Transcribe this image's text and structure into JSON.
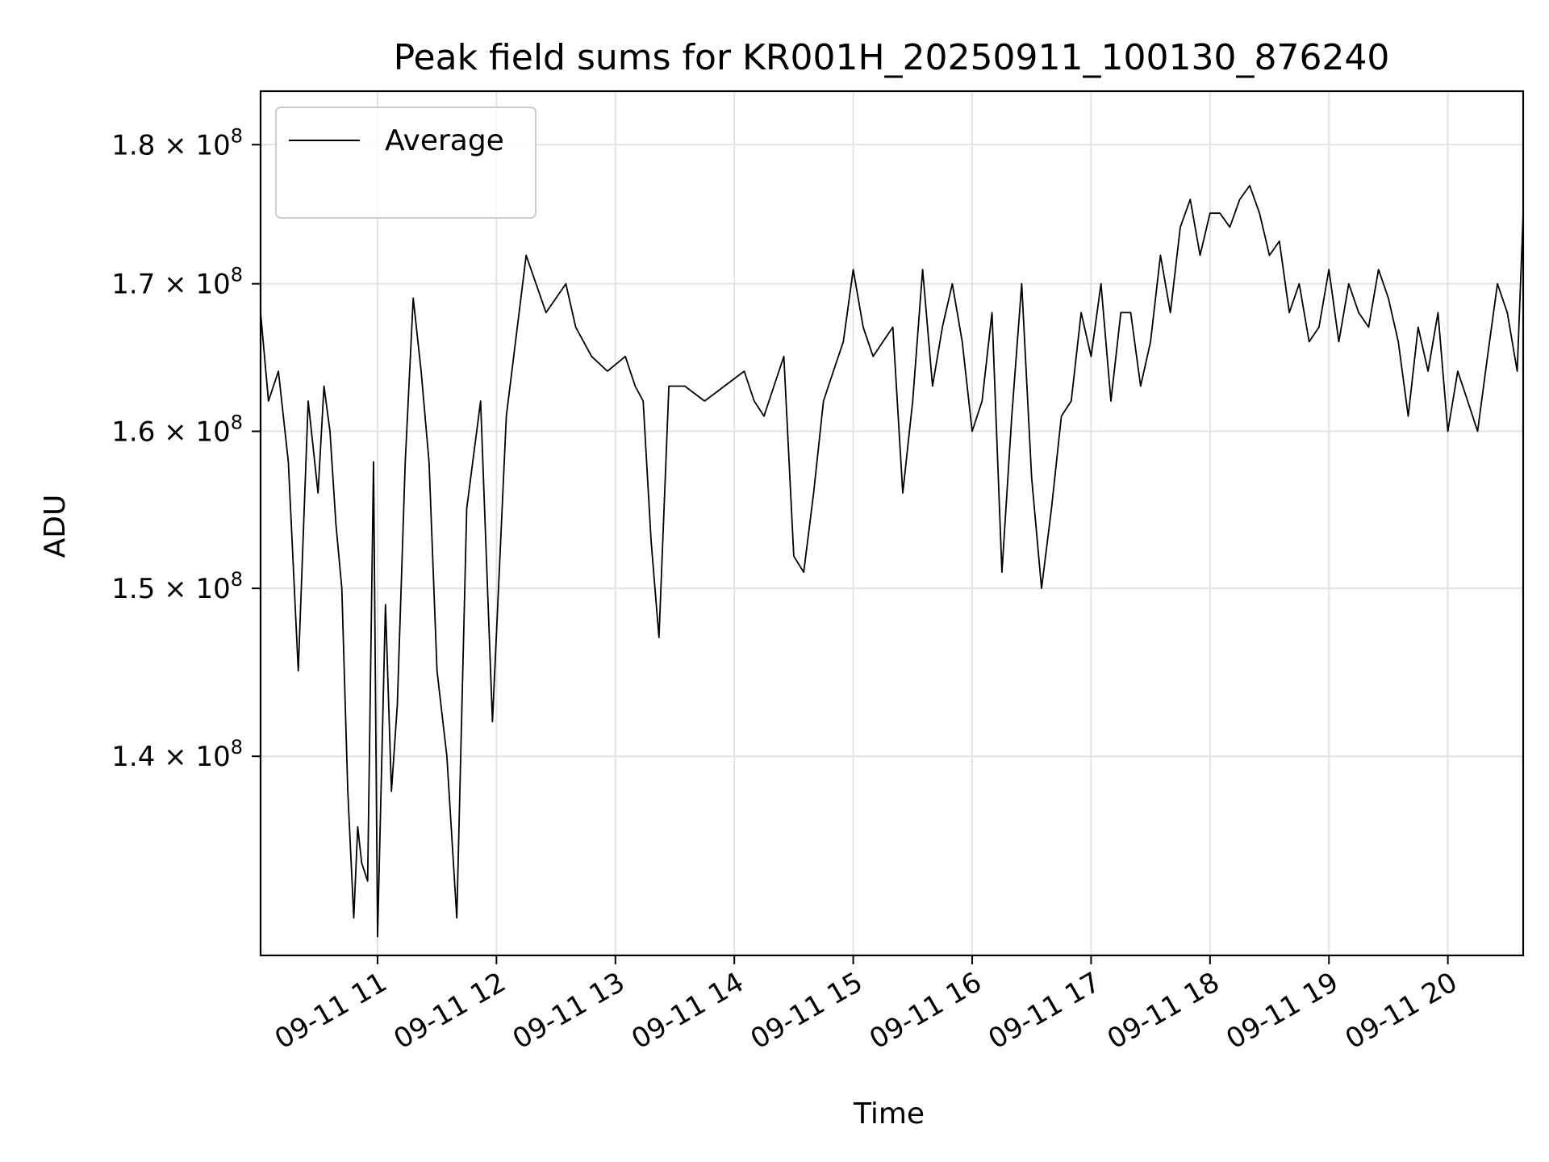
{
  "chart_data": {
    "type": "line",
    "title": "Peak field sums for KR001H_20250911_100130_876240",
    "xlabel": "Time",
    "ylabel": "ADU",
    "yscale": "log",
    "xlim": [
      "2025-09-11 10:01",
      "2025-09-11 20:38"
    ],
    "ylim": [
      129000000,
      184000000
    ],
    "grid": true,
    "legend_position": "upper-left",
    "x_ticks": [
      {
        "value": "2025-09-11 11:00",
        "label": "09-11 11"
      },
      {
        "value": "2025-09-11 12:00",
        "label": "09-11 12"
      },
      {
        "value": "2025-09-11 13:00",
        "label": "09-11 13"
      },
      {
        "value": "2025-09-11 14:00",
        "label": "09-11 14"
      },
      {
        "value": "2025-09-11 15:00",
        "label": "09-11 15"
      },
      {
        "value": "2025-09-11 16:00",
        "label": "09-11 16"
      },
      {
        "value": "2025-09-11 17:00",
        "label": "09-11 17"
      },
      {
        "value": "2025-09-11 18:00",
        "label": "09-11 18"
      },
      {
        "value": "2025-09-11 19:00",
        "label": "09-11 19"
      },
      {
        "value": "2025-09-11 20:00",
        "label": "09-11 20"
      }
    ],
    "y_ticks": [
      {
        "value": 140000000,
        "mantissa": "1.4",
        "base": "10",
        "exp": "8"
      },
      {
        "value": 150000000,
        "mantissa": "1.5",
        "base": "10",
        "exp": "8"
      },
      {
        "value": 160000000,
        "mantissa": "1.6",
        "base": "10",
        "exp": "8"
      },
      {
        "value": 170000000,
        "mantissa": "1.7",
        "base": "10",
        "exp": "8"
      },
      {
        "value": 180000000,
        "mantissa": "1.8",
        "base": "10",
        "exp": "8"
      }
    ],
    "series": [
      {
        "name": "Average",
        "color": "#000000",
        "x": [
          "2025-09-11 10:01",
          "2025-09-11 10:05",
          "2025-09-11 10:10",
          "2025-09-11 10:15",
          "2025-09-11 10:20",
          "2025-09-11 10:25",
          "2025-09-11 10:30",
          "2025-09-11 10:33",
          "2025-09-11 10:36",
          "2025-09-11 10:39",
          "2025-09-11 10:42",
          "2025-09-11 10:45",
          "2025-09-11 10:48",
          "2025-09-11 10:50",
          "2025-09-11 10:52",
          "2025-09-11 10:55",
          "2025-09-11 10:58",
          "2025-09-11 11:00",
          "2025-09-11 11:04",
          "2025-09-11 11:07",
          "2025-09-11 11:10",
          "2025-09-11 11:14",
          "2025-09-11 11:18",
          "2025-09-11 11:22",
          "2025-09-11 11:26",
          "2025-09-11 11:30",
          "2025-09-11 11:35",
          "2025-09-11 11:40",
          "2025-09-11 11:45",
          "2025-09-11 11:52",
          "2025-09-11 11:58",
          "2025-09-11 12:05",
          "2025-09-11 12:15",
          "2025-09-11 12:25",
          "2025-09-11 12:35",
          "2025-09-11 12:40",
          "2025-09-11 12:48",
          "2025-09-11 12:56",
          "2025-09-11 13:05",
          "2025-09-11 13:10",
          "2025-09-11 13:14",
          "2025-09-11 13:18",
          "2025-09-11 13:22",
          "2025-09-11 13:27",
          "2025-09-11 13:35",
          "2025-09-11 13:45",
          "2025-09-11 13:55",
          "2025-09-11 14:05",
          "2025-09-11 14:10",
          "2025-09-11 14:15",
          "2025-09-11 14:20",
          "2025-09-11 14:25",
          "2025-09-11 14:30",
          "2025-09-11 14:35",
          "2025-09-11 14:40",
          "2025-09-11 14:45",
          "2025-09-11 14:50",
          "2025-09-11 14:55",
          "2025-09-11 15:00",
          "2025-09-11 15:05",
          "2025-09-11 15:10",
          "2025-09-11 15:15",
          "2025-09-11 15:20",
          "2025-09-11 15:25",
          "2025-09-11 15:30",
          "2025-09-11 15:35",
          "2025-09-11 15:40",
          "2025-09-11 15:45",
          "2025-09-11 15:50",
          "2025-09-11 15:55",
          "2025-09-11 16:00",
          "2025-09-11 16:05",
          "2025-09-11 16:10",
          "2025-09-11 16:15",
          "2025-09-11 16:20",
          "2025-09-11 16:25",
          "2025-09-11 16:30",
          "2025-09-11 16:35",
          "2025-09-11 16:40",
          "2025-09-11 16:45",
          "2025-09-11 16:50",
          "2025-09-11 16:55",
          "2025-09-11 17:00",
          "2025-09-11 17:05",
          "2025-09-11 17:10",
          "2025-09-11 17:15",
          "2025-09-11 17:20",
          "2025-09-11 17:25",
          "2025-09-11 17:30",
          "2025-09-11 17:35",
          "2025-09-11 17:40",
          "2025-09-11 17:45",
          "2025-09-11 17:50",
          "2025-09-11 17:55",
          "2025-09-11 18:00",
          "2025-09-11 18:05",
          "2025-09-11 18:10",
          "2025-09-11 18:15",
          "2025-09-11 18:20",
          "2025-09-11 18:25",
          "2025-09-11 18:30",
          "2025-09-11 18:35",
          "2025-09-11 18:40",
          "2025-09-11 18:45",
          "2025-09-11 18:50",
          "2025-09-11 18:55",
          "2025-09-11 19:00",
          "2025-09-11 19:05",
          "2025-09-11 19:10",
          "2025-09-11 19:15",
          "2025-09-11 19:20",
          "2025-09-11 19:25",
          "2025-09-11 19:30",
          "2025-09-11 19:35",
          "2025-09-11 19:40",
          "2025-09-11 19:45",
          "2025-09-11 19:50",
          "2025-09-11 19:55",
          "2025-09-11 20:00",
          "2025-09-11 20:05",
          "2025-09-11 20:10",
          "2025-09-11 20:15",
          "2025-09-11 20:20",
          "2025-09-11 20:25",
          "2025-09-11 20:30",
          "2025-09-11 20:35",
          "2025-09-11 20:38"
        ],
        "values": [
          168000000,
          162000000,
          164000000,
          158000000,
          145000000,
          162000000,
          156000000,
          163000000,
          160000000,
          154000000,
          150000000,
          138000000,
          131000000,
          136000000,
          134000000,
          133000000,
          158000000,
          130000000,
          149000000,
          138000000,
          143000000,
          158000000,
          169000000,
          164000000,
          158000000,
          145000000,
          140000000,
          131000000,
          155000000,
          162000000,
          142000000,
          161000000,
          172000000,
          168000000,
          170000000,
          167000000,
          165000000,
          164000000,
          165000000,
          163000000,
          162000000,
          153000000,
          147000000,
          163000000,
          163000000,
          162000000,
          163000000,
          164000000,
          162000000,
          161000000,
          163000000,
          165000000,
          152000000,
          151000000,
          156000000,
          162000000,
          164000000,
          166000000,
          171000000,
          167000000,
          165000000,
          166000000,
          167000000,
          156000000,
          162000000,
          171000000,
          163000000,
          167000000,
          170000000,
          166000000,
          160000000,
          162000000,
          168000000,
          151000000,
          161000000,
          170000000,
          157000000,
          150000000,
          155000000,
          161000000,
          162000000,
          168000000,
          165000000,
          170000000,
          162000000,
          168000000,
          168000000,
          163000000,
          166000000,
          172000000,
          168000000,
          174000000,
          176000000,
          172000000,
          175000000,
          175000000,
          174000000,
          176000000,
          177000000,
          175000000,
          172000000,
          173000000,
          168000000,
          170000000,
          166000000,
          167000000,
          171000000,
          166000000,
          170000000,
          168000000,
          167000000,
          171000000,
          169000000,
          166000000,
          161000000,
          167000000,
          164000000,
          168000000,
          160000000,
          164000000,
          162000000,
          160000000,
          165000000,
          170000000,
          168000000,
          164000000,
          175000000
        ]
      }
    ]
  }
}
